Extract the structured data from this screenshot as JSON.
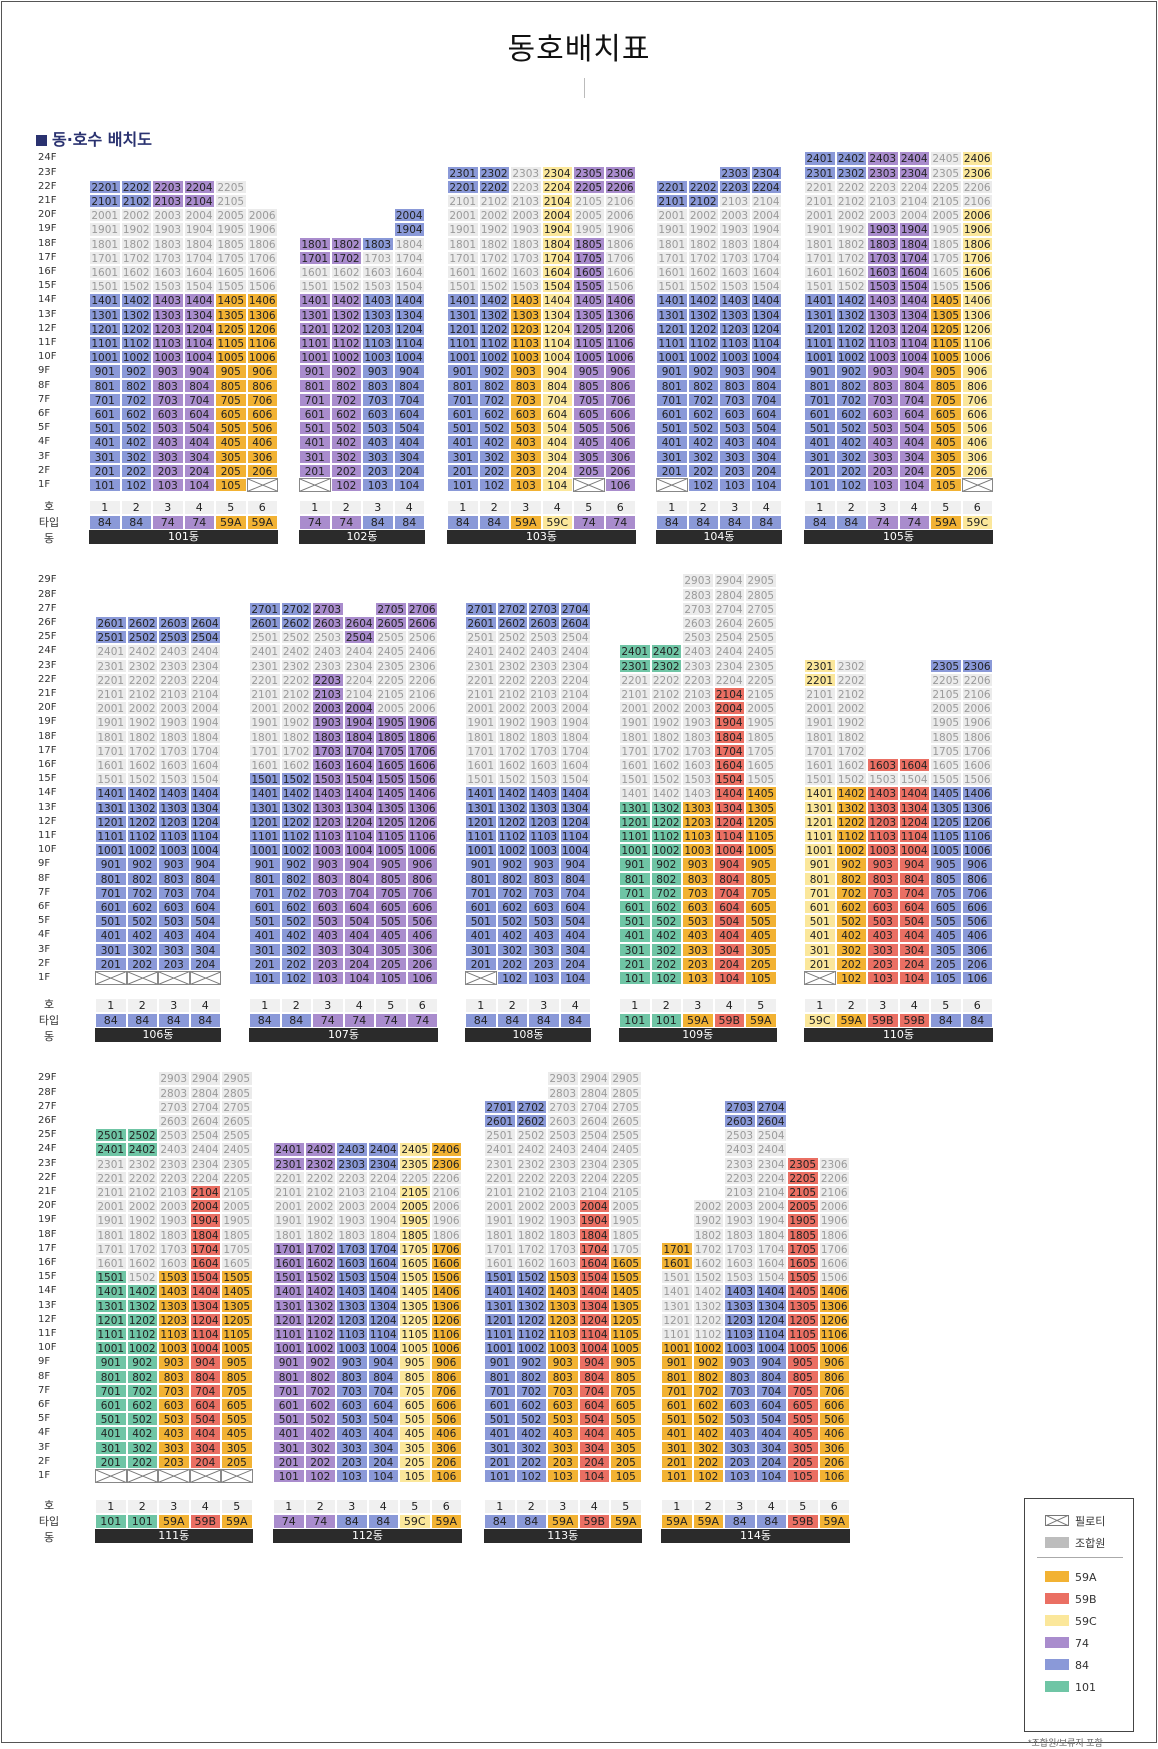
{
  "title": "동호배치표",
  "section_title": "동·호수 배치도",
  "row_labels": {
    "ho": "호",
    "type": "타입",
    "dong": "동"
  },
  "footnote": "*조합원/보류지 포함",
  "colors": {
    "59A": "#f2b233",
    "59B": "#ea6f63",
    "59C": "#fbe79b",
    "74": "#a98ccd",
    "84": "#8a99d8",
    "101": "#6fc5a5",
    "gray": "#ebebeb"
  },
  "legend": [
    {
      "key": "piloti",
      "label": "필로티"
    },
    {
      "key": "member",
      "label": "조합원"
    },
    {
      "key": "59A",
      "label": "59A"
    },
    {
      "key": "59B",
      "label": "59B"
    },
    {
      "key": "59C",
      "label": "59C"
    },
    {
      "key": "74",
      "label": "74"
    },
    {
      "key": "84",
      "label": "84"
    },
    {
      "key": "101",
      "label": "101"
    }
  ],
  "buildings": [
    {
      "name": "101동",
      "maxF": 22,
      "types": [
        "84",
        "84",
        "74",
        "74",
        "59A",
        "59A"
      ],
      "tops": [
        22,
        22,
        22,
        22,
        22,
        20
      ],
      "gray": {
        "1": [
          20,
          14,
          10,
          9
        ],
        "2": [
          20,
          14,
          10,
          9
        ],
        "3": [
          20,
          14,
          10,
          9
        ],
        "4": [
          20,
          14,
          10,
          9
        ],
        "5": [
          22,
          14,
          9,
          8
        ],
        "6": [
          20,
          14,
          9,
          8
        ]
      },
      "piloti": [
        6
      ]
    },
    {
      "name": "102동",
      "maxF": 20,
      "types": [
        "74",
        "74",
        "84",
        "84"
      ],
      "tops": [
        18,
        18,
        18,
        20
      ],
      "gray": {
        "1": [
          16,
          14,
          12,
          11
        ],
        "2": [
          16,
          14,
          12,
          11
        ],
        "3": [
          17,
          14,
          12,
          12
        ],
        "4": [
          18,
          14,
          12,
          12
        ]
      },
      "piloti": [
        1
      ]
    },
    {
      "name": "103동",
      "maxF": 23,
      "types": [
        "84",
        "84",
        "59A",
        "59C",
        "74",
        "74"
      ],
      "tops": [
        23,
        23,
        23,
        23,
        23,
        23
      ],
      "gray": {
        "1": [
          21,
          14,
          12,
          10
        ],
        "2": [
          21,
          14,
          12,
          10
        ],
        "3": [
          23,
          14,
          13,
          10
        ],
        "4": [
          20,
          20,
          11,
          9
        ],
        "5": [
          21,
          18,
          12,
          9
        ],
        "6": [
          21,
          14,
          12,
          9
        ]
      },
      "piloti": [
        5
      ]
    },
    {
      "name": "104동",
      "maxF": 23,
      "types": [
        "84",
        "84",
        "84",
        "84"
      ],
      "tops": [
        22,
        22,
        23,
        23
      ],
      "gray": {
        "1": [
          20,
          14,
          12,
          12
        ],
        "2": [
          20,
          14,
          12,
          12
        ],
        "3": [
          21,
          14,
          12,
          12
        ],
        "4": [
          21,
          14,
          12,
          12
        ]
      },
      "piloti": [
        1
      ]
    },
    {
      "name": "105동",
      "maxF": 24,
      "types": [
        "84",
        "84",
        "74",
        "74",
        "59A",
        "59C"
      ],
      "tops": [
        24,
        24,
        24,
        24,
        24,
        24
      ],
      "gray": {
        "1": [
          22,
          14,
          12,
          12
        ],
        "2": [
          22,
          14,
          12,
          12
        ],
        "3": [
          22,
          19,
          12,
          12
        ],
        "4": [
          22,
          19,
          10,
          10
        ],
        "5": [
          24,
          14,
          12,
          10
        ],
        "6": [
          22,
          20,
          12,
          12
        ]
      },
      "piloti": [
        6
      ]
    },
    {
      "name": "106동",
      "maxF": 26,
      "types": [
        "84",
        "84",
        "84",
        "84"
      ],
      "tops": [
        26,
        26,
        26,
        26
      ],
      "gray": {
        "1": [
          24,
          14,
          12,
          12
        ],
        "2": [
          24,
          14,
          12,
          12
        ],
        "3": [
          24,
          14,
          12,
          12
        ],
        "4": [
          24,
          14,
          12,
          12
        ]
      },
      "piloti": [
        1,
        2,
        3,
        4
      ]
    },
    {
      "name": "107동",
      "maxF": 27,
      "types": [
        "84",
        "84",
        "74",
        "74",
        "74",
        "74"
      ],
      "tops": [
        27,
        27,
        27,
        26,
        27,
        27
      ],
      "gray": {
        "1": [
          25,
          15,
          13,
          13
        ],
        "2": [
          25,
          15,
          13,
          13
        ],
        "3": [
          25,
          22,
          13,
          13
        ],
        "4": [
          24,
          20,
          13,
          13
        ],
        "5": [
          25,
          19,
          13,
          13
        ],
        "6": [
          25,
          19,
          13,
          13
        ]
      },
      "piloti": []
    },
    {
      "name": "108동",
      "maxF": 27,
      "types": [
        "84",
        "84",
        "84",
        "84"
      ],
      "tops": [
        27,
        27,
        27,
        27
      ],
      "gray": {
        "1": [
          25,
          14,
          12,
          12
        ],
        "2": [
          25,
          14,
          12,
          12
        ],
        "3": [
          25,
          14,
          12,
          12
        ],
        "4": [
          25,
          14,
          12,
          12
        ]
      },
      "piloti": [
        1
      ]
    },
    {
      "name": "109동",
      "maxF": 29,
      "types": [
        "101",
        "101",
        "59A",
        "59B",
        "59A"
      ],
      "tops": [
        24,
        24,
        29,
        29,
        29
      ],
      "gray": {
        "1": [
          22,
          13,
          12,
          8
        ],
        "2": [
          22,
          13,
          12,
          8
        ],
        "3": [
          29,
          13,
          12,
          9
        ],
        "4": [
          29,
          21,
          12,
          8
        ],
        "5": [
          29,
          14,
          10,
          8
        ]
      },
      "piloti": []
    },
    {
      "name": "110동",
      "maxF": 23,
      "types": [
        "59C",
        "59A",
        "59B",
        "59B",
        "84",
        "84"
      ],
      "tops": [
        23,
        23,
        16,
        16,
        23,
        23
      ],
      "gray": {
        "1": [
          21,
          14,
          12,
          10
        ],
        "2": [
          23,
          14,
          12,
          10
        ],
        "3": [
          15,
          14,
          12,
          10
        ],
        "4": [
          15,
          14,
          12,
          6
        ],
        "5": [
          22,
          14,
          12,
          12
        ],
        "6": [
          22,
          14,
          12,
          12
        ]
      },
      "piloti": [
        1
      ]
    },
    {
      "name": "111동",
      "maxF": 29,
      "types": [
        "101",
        "101",
        "59A",
        "59B",
        "59A"
      ],
      "tops": [
        25,
        25,
        29,
        29,
        29
      ],
      "gray": {
        "1": [
          23,
          15,
          14,
          10
        ],
        "2": [
          23,
          14,
          14,
          10
        ],
        "3": [
          29,
          15,
          12,
          10
        ],
        "4": [
          29,
          21,
          12,
          10
        ],
        "5": [
          29,
          15,
          10,
          10
        ]
      },
      "piloti": [
        1,
        2,
        3,
        4,
        5
      ]
    },
    {
      "name": "112동",
      "maxF": 24,
      "types": [
        "74",
        "74",
        "84",
        "84",
        "59C",
        "59A"
      ],
      "tops": [
        24,
        24,
        24,
        24,
        24,
        24
      ],
      "gray": {
        "1": [
          22,
          17,
          11,
          10
        ],
        "2": [
          22,
          17,
          11,
          10
        ],
        "3": [
          22,
          17,
          11,
          10
        ],
        "4": [
          22,
          17,
          11,
          10
        ],
        "5": [
          22,
          21,
          12,
          10
        ],
        "6": [
          22,
          17,
          12,
          10
        ]
      },
      "piloti": []
    },
    {
      "name": "113동",
      "maxF": 29,
      "types": [
        "84",
        "84",
        "59A",
        "59B",
        "59A"
      ],
      "tops": [
        27,
        27,
        29,
        29,
        29
      ],
      "gray": {
        "1": [
          25,
          15,
          14,
          10
        ],
        "2": [
          25,
          15,
          14,
          10
        ],
        "3": [
          29,
          15,
          12,
          10
        ],
        "4": [
          29,
          20,
          12,
          10
        ],
        "5": [
          29,
          16,
          10,
          10
        ]
      },
      "piloti": []
    },
    {
      "name": "114동",
      "maxF": 27,
      "types": [
        "59A",
        "59A",
        "84",
        "84",
        "59B",
        "59A"
      ],
      "tops": [
        17,
        20,
        27,
        27,
        23,
        23
      ],
      "gray": {
        "1": [
          15,
          10,
          10,
          9
        ],
        "2": [
          20,
          10,
          10,
          9
        ],
        "3": [
          25,
          14,
          11,
          9
        ],
        "4": [
          25,
          14,
          11,
          9
        ],
        "5": [
          21,
          21,
          11,
          9
        ],
        "6": [
          23,
          14,
          11,
          9
        ]
      },
      "piloti": []
    }
  ],
  "layout_note": ""
}
